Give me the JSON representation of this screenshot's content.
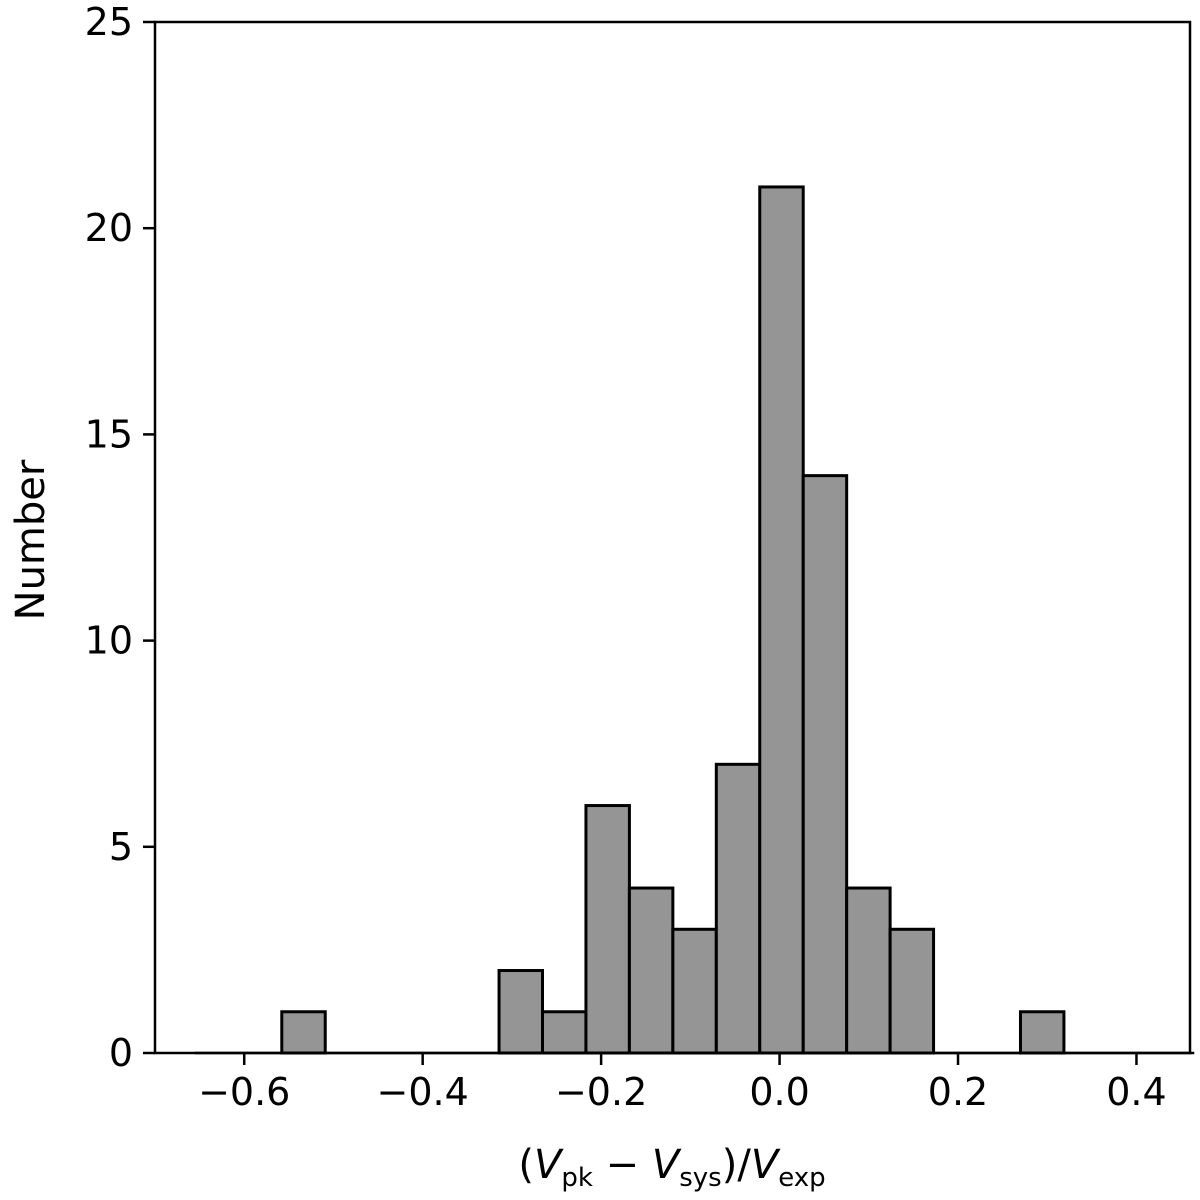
{
  "chart_data": {
    "type": "bar",
    "subtype": "histogram",
    "title": "",
    "xlabel": {
      "open": "(",
      "v1": "V",
      "v1_sub": "pk",
      "minus": " − ",
      "v2": "V",
      "v2_sub": "sys",
      "slash": ")/",
      "v3": "V",
      "v3_sub": "exp"
    },
    "ylabel": "Number",
    "xlim": [
      -0.7,
      0.46
    ],
    "ylim": [
      0,
      25
    ],
    "xticks": [
      -0.6,
      -0.4,
      -0.2,
      0.0,
      0.2,
      0.4
    ],
    "xtick_labels": [
      "−0.6",
      "−0.4",
      "−0.2",
      "0.0",
      "0.2",
      "0.4"
    ],
    "yticks": [
      0,
      5,
      10,
      15,
      20,
      25
    ],
    "ytick_labels": [
      "0",
      "5",
      "10",
      "15",
      "20",
      "25"
    ],
    "bin_width": 0.0487,
    "bins": [
      {
        "left": -0.6553,
        "count": 0
      },
      {
        "left": -0.6066,
        "count": 0
      },
      {
        "left": -0.5579,
        "count": 1
      },
      {
        "left": -0.5092,
        "count": 0
      },
      {
        "left": -0.4605,
        "count": 0
      },
      {
        "left": -0.4118,
        "count": 0
      },
      {
        "left": -0.3631,
        "count": 0
      },
      {
        "left": -0.3144,
        "count": 2
      },
      {
        "left": -0.2657,
        "count": 1
      },
      {
        "left": -0.217,
        "count": 6
      },
      {
        "left": -0.1683,
        "count": 4
      },
      {
        "left": -0.1196,
        "count": 3
      },
      {
        "left": -0.0709,
        "count": 7
      },
      {
        "left": -0.0222,
        "count": 21
      },
      {
        "left": 0.0265,
        "count": 14
      },
      {
        "left": 0.0752,
        "count": 4
      },
      {
        "left": 0.1239,
        "count": 3
      },
      {
        "left": 0.1726,
        "count": 0
      },
      {
        "left": 0.2213,
        "count": 0
      },
      {
        "left": 0.27,
        "count": 1
      },
      {
        "left": 0.3187,
        "count": 0
      },
      {
        "left": 0.3674,
        "count": 0
      },
      {
        "left": 0.4161,
        "count": 0
      }
    ],
    "bar_color": "#959595",
    "edge_color": "#000000",
    "grid": false,
    "legend": "none"
  }
}
